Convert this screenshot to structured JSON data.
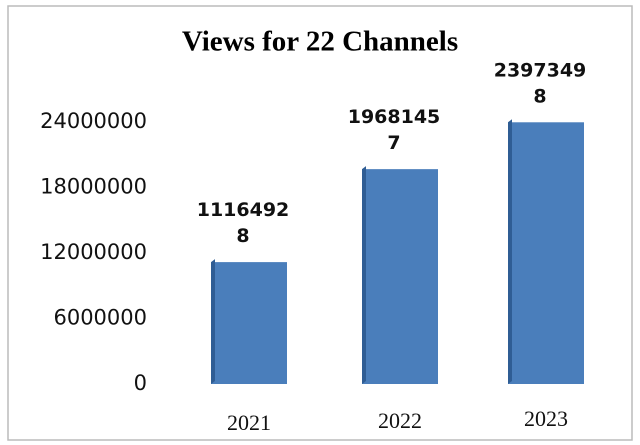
{
  "chart_data": {
    "type": "bar",
    "title": "Views for 22 Channels",
    "categories": [
      "2021",
      "2022",
      "2023"
    ],
    "values": [
      11164928,
      19681457,
      23973498
    ],
    "color": "#4a7ebb",
    "ylim": [
      0,
      24000000
    ],
    "yticks": [
      0,
      6000000,
      12000000,
      18000000,
      24000000
    ],
    "grid": false
  }
}
